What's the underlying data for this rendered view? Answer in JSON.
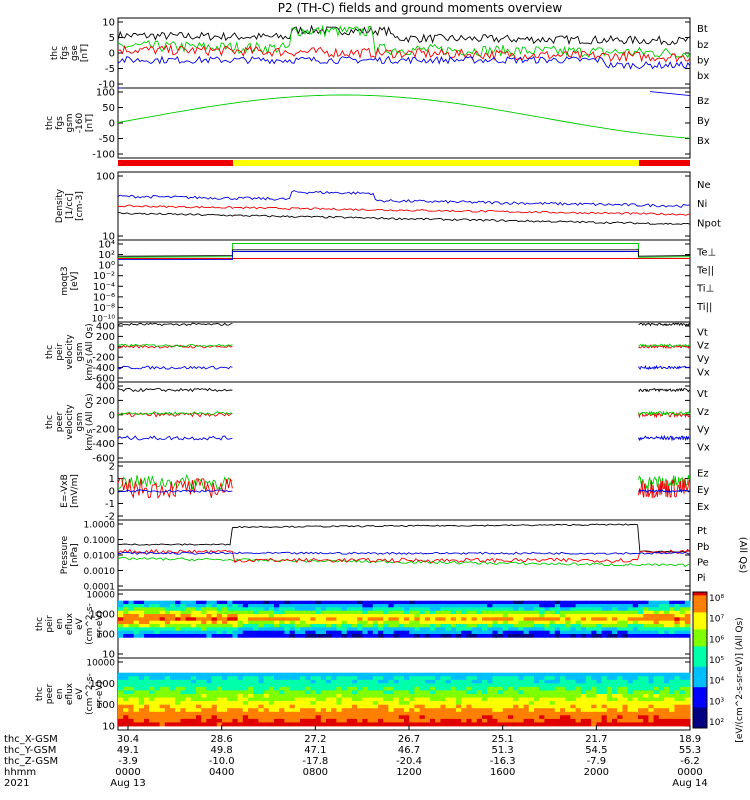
{
  "title": "P2 (TH-C) fields and ground moments overview",
  "colors": {
    "black": "#000000",
    "red": "#ee0000",
    "green": "#00cc00",
    "blue": "#0000dd",
    "yellow": "#ffff00"
  },
  "chart_data": [
    {
      "type": "line",
      "ylabel": [
        "thc",
        "fgs",
        "gse",
        "[nT]"
      ],
      "yticks": [
        "10",
        "5",
        "0",
        "-5",
        "-10"
      ],
      "ylim": [
        -10,
        10
      ],
      "legend": [
        {
          "name": "Bt",
          "color": "#000000"
        },
        {
          "name": "bz",
          "color": "#ee0000"
        },
        {
          "name": "by",
          "color": "#00cc00"
        },
        {
          "name": "bx",
          "color": "#0000dd"
        }
      ]
    },
    {
      "type": "line",
      "ylabel": [
        "thc",
        "fgs",
        "gsm",
        "-160",
        "[nT]"
      ],
      "yticks": [
        "100",
        "50",
        "0",
        "-50",
        "-100"
      ],
      "ylim": [
        -125,
        125
      ],
      "legend": [
        {
          "name": "Bz",
          "color": "#ee0000"
        },
        {
          "name": "By",
          "color": "#00cc00"
        },
        {
          "name": "Bx",
          "color": "#0000dd"
        }
      ]
    },
    {
      "type": "line",
      "ylabel": [
        "Density",
        "[1/cc]",
        "[cm-3]"
      ],
      "yticks": [
        "100",
        "10"
      ],
      "scale": "log",
      "legend": [
        {
          "name": "Ne",
          "color": "#ee0000"
        },
        {
          "name": "Ni",
          "color": "#000000"
        },
        {
          "name": "Npot",
          "color": "#0000dd"
        }
      ]
    },
    {
      "type": "line",
      "ylabel": [
        "moqt3",
        "[eV]"
      ],
      "yticks": [
        "10⁴",
        "10²",
        "10⁰",
        "10⁻²",
        "10⁻⁴",
        "10⁻⁶",
        "10⁻⁸",
        "10⁻¹⁰"
      ],
      "scale": "log",
      "legend": [
        {
          "name": "Te⊥",
          "color": "#ee0000"
        },
        {
          "name": "Te||",
          "color": "#000000"
        },
        {
          "name": "Ti⊥",
          "color": "#0000dd"
        },
        {
          "name": "Ti||",
          "color": "#00cc00"
        }
      ]
    },
    {
      "type": "line",
      "ylabel": [
        "thc",
        "peir",
        "velocity",
        "gsm",
        "km/s (All Qs)"
      ],
      "yticks": [
        "400",
        "200",
        "0",
        "-200",
        "-400",
        "-600"
      ],
      "ylim": [
        -600,
        400
      ],
      "legend": [
        {
          "name": "Vt",
          "color": "#000000"
        },
        {
          "name": "Vz",
          "color": "#ee0000"
        },
        {
          "name": "Vy",
          "color": "#00cc00"
        },
        {
          "name": "Vx",
          "color": "#0000dd"
        }
      ]
    },
    {
      "type": "line",
      "ylabel": [
        "thc",
        "peer",
        "velocity",
        "gsm",
        "km/s (All Qs)"
      ],
      "yticks": [
        "400",
        "200",
        "0",
        "-200",
        "-400",
        "-600"
      ],
      "ylim": [
        -600,
        400
      ],
      "legend": [
        {
          "name": "Vt",
          "color": "#000000"
        },
        {
          "name": "Vz",
          "color": "#ee0000"
        },
        {
          "name": "Vy",
          "color": "#00cc00"
        },
        {
          "name": "Vx",
          "color": "#0000dd"
        }
      ]
    },
    {
      "type": "line",
      "ylabel": [
        "E=-VxB",
        "[mV/m]"
      ],
      "yticks": [
        "2",
        "1",
        "0",
        "-1",
        "-2"
      ],
      "ylim": [
        -2,
        2
      ],
      "legend": [
        {
          "name": "Ez",
          "color": "#ee0000"
        },
        {
          "name": "Ey",
          "color": "#00cc00"
        },
        {
          "name": "Ex",
          "color": "#0000dd"
        }
      ]
    },
    {
      "type": "line",
      "ylabel": [
        "Pressure",
        "[nPa]"
      ],
      "yticks": [
        "1.0000",
        "0.1000",
        "0.0100",
        "0.0010",
        "0.0001"
      ],
      "scale": "log",
      "legend": [
        {
          "name": "Pt",
          "color": "#000000"
        },
        {
          "name": "Pb",
          "color": "#ee0000"
        },
        {
          "name": "Pe",
          "color": "#00cc00"
        },
        {
          "name": "Pi",
          "color": "#0000dd"
        }
      ],
      "side_label": "(All Qs)"
    },
    {
      "type": "heatmap",
      "ylabel": [
        "thc",
        "peir",
        "en",
        "eflux",
        "eV",
        "(cm^2-s-",
        "sr-eV)"
      ],
      "yticks": [
        "10000",
        "1000",
        "100",
        "10"
      ],
      "scale": "log"
    },
    {
      "type": "heatmap",
      "ylabel": [
        "thc",
        "peer",
        "en",
        "eflux",
        "eV",
        "(cm^2-s-",
        "sr-eV)"
      ],
      "yticks": [
        "10000",
        "1000",
        "100",
        "10"
      ],
      "scale": "log"
    }
  ],
  "colorbar": {
    "label": "[eV/(cm^2-s-sr-eV)] (All Qs)",
    "ticks": [
      "10⁸",
      "10⁷",
      "10⁶",
      "10⁵",
      "10⁴",
      "10³",
      "10²"
    ]
  },
  "xaxis": {
    "row_labels": [
      "thc_X-GSM",
      "thc_Y-GSM",
      "thc_Z-GSM",
      "hhmm",
      "2021"
    ],
    "ticks": [
      {
        "x-gsm": "30.4",
        "y-gsm": "49.1",
        "z-gsm": "-3.9",
        "hhmm": "0000",
        "date": "Aug 13"
      },
      {
        "x-gsm": "28.6",
        "y-gsm": "49.8",
        "z-gsm": "-10.0",
        "hhmm": "0400",
        "date": ""
      },
      {
        "x-gsm": "27.2",
        "y-gsm": "47.1",
        "z-gsm": "-17.8",
        "hhmm": "0800",
        "date": ""
      },
      {
        "x-gsm": "26.7",
        "y-gsm": "46.7",
        "z-gsm": "-20.4",
        "hhmm": "1200",
        "date": ""
      },
      {
        "x-gsm": "25.1",
        "y-gsm": "51.3",
        "z-gsm": "-16.3",
        "hhmm": "1600",
        "date": ""
      },
      {
        "x-gsm": "21.7",
        "y-gsm": "54.5",
        "z-gsm": "-7.9",
        "hhmm": "2000",
        "date": ""
      },
      {
        "x-gsm": "18.9",
        "y-gsm": "55.3",
        "z-gsm": "-6.2",
        "hhmm": "0000",
        "date": "Aug 14"
      }
    ]
  }
}
